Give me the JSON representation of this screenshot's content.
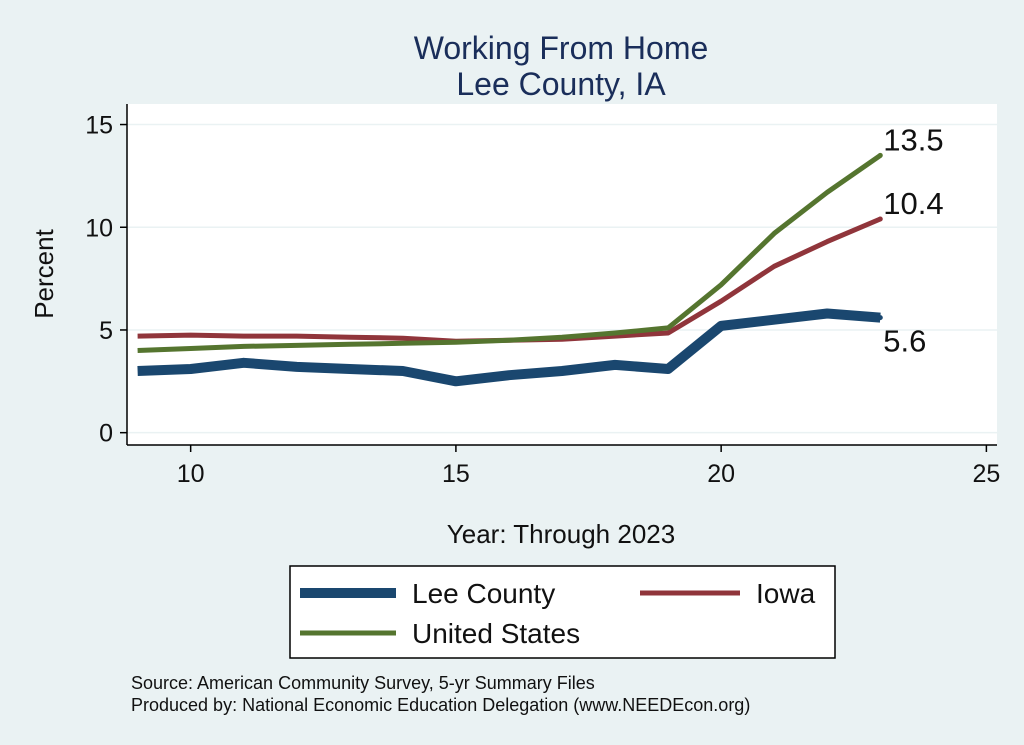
{
  "chart_data": {
    "type": "line",
    "title": "Working From Home",
    "subtitle": "Lee County, IA",
    "xlabel": "Year: Through 2023",
    "ylabel": "Percent",
    "xlim": [
      8.8,
      25.2
    ],
    "ylim": [
      -0.6,
      16
    ],
    "xticks": [
      10,
      15,
      20,
      25
    ],
    "yticks": [
      0,
      5,
      10,
      15
    ],
    "grid": true,
    "legend_position": "bottom",
    "x": [
      9,
      10,
      11,
      12,
      13,
      14,
      15,
      16,
      17,
      18,
      19,
      20,
      21,
      22,
      23
    ],
    "series": [
      {
        "name": "Lee County",
        "color": "#1a476f",
        "values": [
          3.0,
          3.1,
          3.4,
          3.2,
          3.1,
          3.0,
          2.5,
          2.8,
          3.0,
          3.3,
          3.1,
          5.2,
          5.5,
          5.8,
          5.6
        ],
        "end_label": "5.6"
      },
      {
        "name": "Iowa",
        "color": "#90353b",
        "values": [
          4.7,
          4.75,
          4.7,
          4.7,
          4.65,
          4.6,
          4.45,
          4.5,
          4.55,
          4.7,
          4.85,
          6.4,
          8.1,
          9.3,
          10.4
        ],
        "end_label": "10.4"
      },
      {
        "name": "United States",
        "color": "#55752f",
        "values": [
          4.0,
          4.1,
          4.2,
          4.25,
          4.3,
          4.35,
          4.4,
          4.5,
          4.65,
          4.85,
          5.1,
          7.2,
          9.7,
          11.7,
          13.5
        ],
        "end_label": "13.5"
      }
    ]
  },
  "footer": {
    "source": "Source: American Community Survey, 5-yr Summary Files",
    "produced_by": "Produced by: National Economic Education Delegation (www.NEEDEcon.org)"
  }
}
